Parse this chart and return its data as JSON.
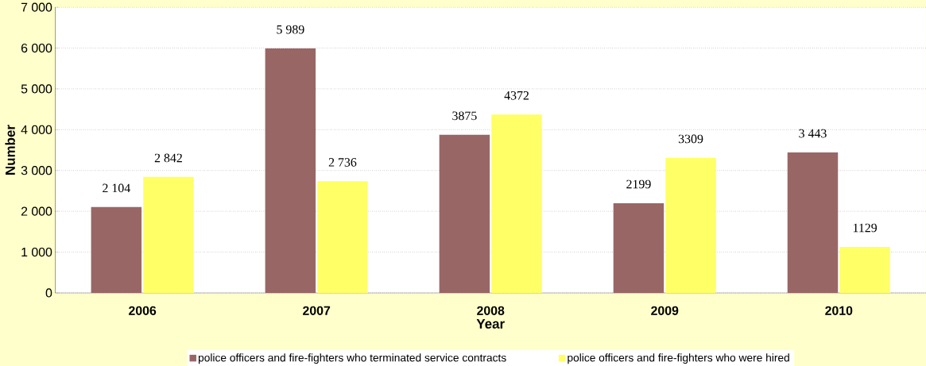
{
  "chart_data": {
    "type": "bar",
    "xlabel": "Year",
    "ylabel": "Number",
    "categories": [
      "2006",
      "2007",
      "2008",
      "2009",
      "2010"
    ],
    "series": [
      {
        "name": "police officers and fire-fighters who terminated service contracts",
        "color": "#996666",
        "values": [
          2104,
          5989,
          3875,
          2199,
          3443
        ],
        "value_labels": [
          "2 104",
          "5 989",
          "3875",
          "2199",
          "3 443"
        ]
      },
      {
        "name": "police officers and fire-fighters who were hired",
        "color": "#ffff66",
        "values": [
          2842,
          2736,
          4372,
          3309,
          1129
        ],
        "value_labels": [
          "2 842",
          "2 736",
          "4372",
          "3309",
          "1129"
        ]
      }
    ],
    "ylim": [
      0,
      7000
    ],
    "yticks": [
      {
        "value": 0,
        "label": "0"
      },
      {
        "value": 1000,
        "label": "1 000"
      },
      {
        "value": 2000,
        "label": "2 000"
      },
      {
        "value": 3000,
        "label": "3 000"
      },
      {
        "value": 4000,
        "label": "4 000"
      },
      {
        "value": 5000,
        "label": "5 000"
      },
      {
        "value": 6000,
        "label": "6 000"
      },
      {
        "value": 7000,
        "label": "7 000"
      }
    ],
    "grid": "y",
    "legend": "bottom"
  }
}
